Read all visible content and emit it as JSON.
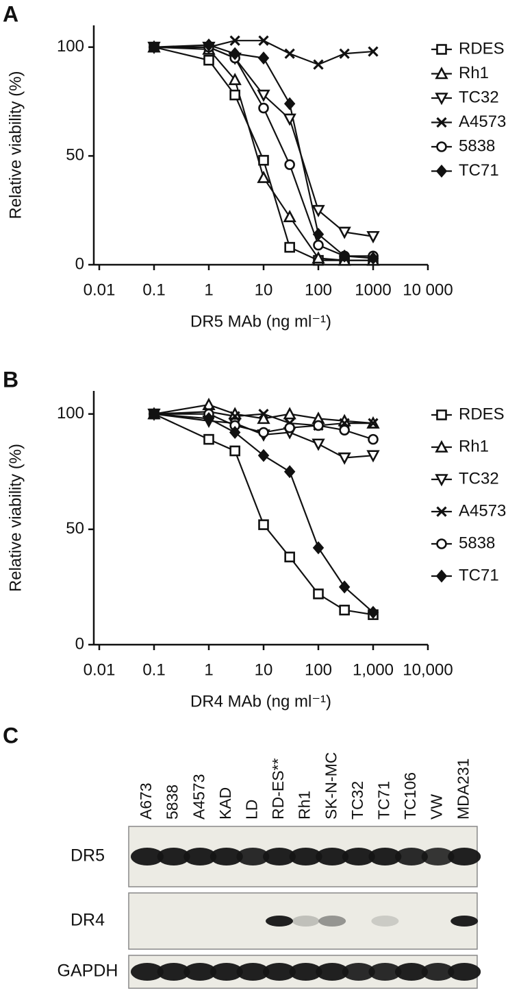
{
  "chart_data": [
    {
      "type": "line",
      "panel": "A",
      "xlabel": "DR5 MAb (ng ml⁻¹)",
      "ylabel": "Relative viability (%)",
      "xscale": "log",
      "xlim": [
        0.01,
        10000
      ],
      "ylim": [
        0,
        110
      ],
      "xticks": [
        0.01,
        0.1,
        1,
        10,
        100,
        1000,
        {
          "value": 10000,
          "label": "10 000"
        }
      ],
      "yticks": [
        0,
        50,
        100
      ],
      "legend": "right",
      "x": [
        0.1,
        1,
        3,
        10,
        30,
        100,
        300,
        1000
      ],
      "series": [
        {
          "name": "RDES",
          "color": "#111111",
          "marker": "square",
          "values": [
            100,
            94,
            78,
            48,
            8,
            2,
            2,
            2
          ]
        },
        {
          "name": "Rh1",
          "color": "#111111",
          "marker": "triangle-up",
          "values": [
            100,
            99,
            85,
            40,
            22,
            3,
            2,
            2
          ]
        },
        {
          "name": "TC32",
          "color": "#111111",
          "marker": "triangle-down",
          "values": [
            100,
            100,
            95,
            78,
            67,
            25,
            15,
            13
          ]
        },
        {
          "name": "A4573",
          "color": "#111111",
          "marker": "x",
          "values": [
            100,
            100,
            103,
            103,
            97,
            92,
            97,
            98
          ]
        },
        {
          "name": "5838",
          "color": "#111111",
          "marker": "circle",
          "values": [
            100,
            100,
            95,
            72,
            46,
            9,
            4,
            4
          ]
        },
        {
          "name": "TC71",
          "color": "#111111",
          "marker": "diamond",
          "values": [
            100,
            101,
            97,
            95,
            74,
            14,
            4,
            3
          ]
        }
      ]
    },
    {
      "type": "line",
      "panel": "B",
      "xlabel": "DR4 MAb (ng ml⁻¹)",
      "ylabel": "Relative viability (%)",
      "xscale": "log",
      "xlim": [
        0.01,
        10000
      ],
      "ylim": [
        0,
        110
      ],
      "xticks": [
        0.01,
        0.1,
        1,
        10,
        100,
        {
          "value": 1000,
          "label": "1,000"
        },
        {
          "value": 10000,
          "label": "10,000"
        }
      ],
      "yticks": [
        0,
        50,
        100
      ],
      "legend": "right",
      "x": [
        0.1,
        1,
        3,
        10,
        30,
        100,
        300,
        1000
      ],
      "series": [
        {
          "name": "RDES",
          "color": "#111111",
          "marker": "square",
          "values": [
            100,
            89,
            84,
            52,
            38,
            22,
            15,
            13
          ]
        },
        {
          "name": "Rh1",
          "color": "#111111",
          "marker": "triangle-up",
          "values": [
            100,
            104,
            100,
            98,
            100,
            98,
            97,
            96
          ]
        },
        {
          "name": "TC32",
          "color": "#111111",
          "marker": "triangle-down",
          "values": [
            100,
            97,
            96,
            91,
            92,
            87,
            81,
            82
          ]
        },
        {
          "name": "A4573",
          "color": "#111111",
          "marker": "x",
          "values": [
            100,
            101,
            99,
            100,
            96,
            95,
            96,
            96
          ]
        },
        {
          "name": "5838",
          "color": "#111111",
          "marker": "circle",
          "values": [
            100,
            100,
            95,
            92,
            94,
            95,
            93,
            89
          ]
        },
        {
          "name": "TC71",
          "color": "#111111",
          "marker": "diamond",
          "values": [
            100,
            98,
            92,
            82,
            75,
            42,
            25,
            14
          ]
        }
      ]
    }
  ],
  "blot": {
    "panel": "C",
    "lanes": [
      "A673",
      "5838",
      "A4573",
      "KAD",
      "LD",
      "RD-ES**",
      "Rh1",
      "SK-N-MC",
      "TC32",
      "TC71",
      "TC106",
      "VW",
      "MDA231"
    ],
    "rows": [
      "DR5",
      "DR4",
      "GAPDH"
    ]
  }
}
